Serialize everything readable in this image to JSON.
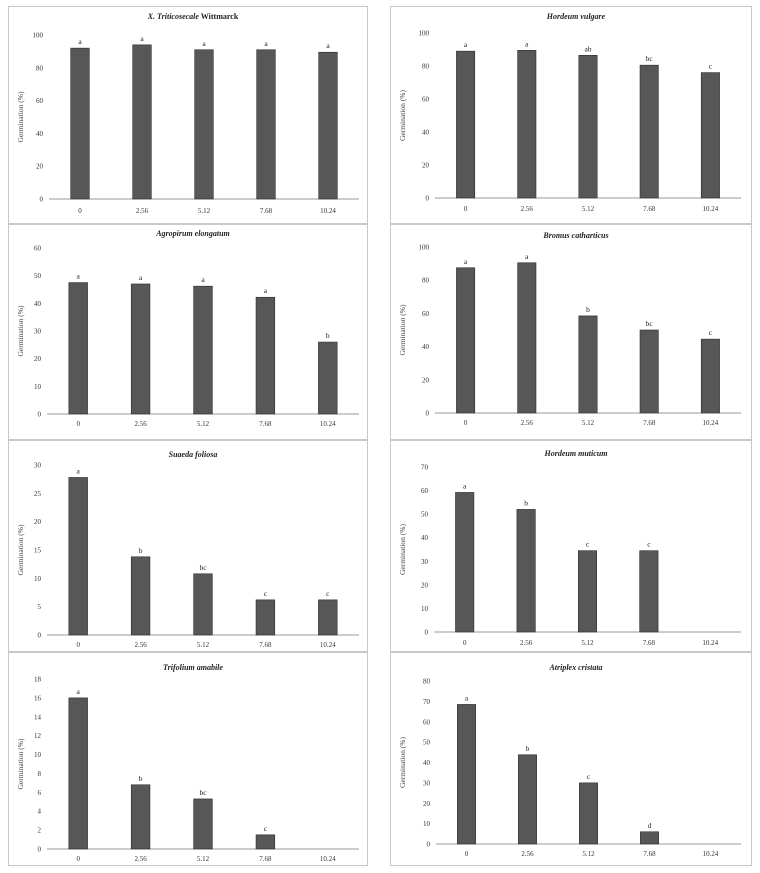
{
  "chart_data": [
    {
      "type": "bar",
      "title": "X. Triticosecale Wittmarck",
      "title_parts": [
        {
          "text": "X. Triticosecale",
          "italic": true
        },
        {
          "text": " Wittmarck",
          "italic": false
        }
      ],
      "ylabel": "Germination (%)",
      "xlabel": "",
      "categories": [
        "0",
        "2.56",
        "5.12",
        "7.68",
        "10.24"
      ],
      "values": [
        92,
        94,
        91,
        91,
        89.5
      ],
      "labels": [
        "a",
        "a",
        "a",
        "a",
        "a"
      ],
      "ylim": [
        0,
        100
      ],
      "yticks": [
        0,
        20,
        40,
        60,
        80,
        100
      ],
      "grid": false
    },
    {
      "type": "bar",
      "title": "Hordeum vulgare",
      "ylabel": "Germination (%)",
      "xlabel": "",
      "categories": [
        "0",
        "2.56",
        "5.12",
        "7.68",
        "10.24"
      ],
      "values": [
        89,
        89.5,
        86.5,
        80.5,
        76
      ],
      "labels": [
        "a",
        "a",
        "ab",
        "bc",
        "c"
      ],
      "ylim": [
        0,
        100
      ],
      "yticks": [
        0,
        20,
        40,
        60,
        80,
        100
      ],
      "grid": false
    },
    {
      "type": "bar",
      "title": "Agropirum elongatum",
      "ylabel": "Germination (%)",
      "xlabel": "",
      "categories": [
        "0",
        "2.56",
        "5.12",
        "7.68",
        "10.24"
      ],
      "values": [
        47.5,
        47,
        46.2,
        42.2,
        26
      ],
      "labels": [
        "a",
        "a",
        "a",
        "a",
        "b"
      ],
      "ylim": [
        0,
        60
      ],
      "yticks": [
        0,
        10,
        20,
        30,
        40,
        50,
        60
      ],
      "grid": false
    },
    {
      "type": "bar",
      "title": "Bromus catharticus",
      "ylabel": "Germination (%)",
      "xlabel": "",
      "categories": [
        "0",
        "2.56",
        "5.12",
        "7.68",
        "10.24"
      ],
      "values": [
        87.5,
        90.5,
        58.5,
        50,
        44.5
      ],
      "labels": [
        "a",
        "a",
        "b",
        "bc",
        "c"
      ],
      "ylim": [
        0,
        100
      ],
      "yticks": [
        0,
        20,
        40,
        60,
        80,
        100
      ],
      "grid": false
    },
    {
      "type": "bar",
      "title": "Suaeda foliosa",
      "ylabel": "Germination (%)",
      "xlabel": "",
      "categories": [
        "0",
        "2.56",
        "5.12",
        "7.68",
        "10.24"
      ],
      "values": [
        27.8,
        13.8,
        10.8,
        6.2,
        6.2
      ],
      "labels": [
        "a",
        "b",
        "bc",
        "c",
        "c"
      ],
      "ylim": [
        0,
        30
      ],
      "yticks": [
        0,
        5,
        10,
        15,
        20,
        25,
        30
      ],
      "grid": false
    },
    {
      "type": "bar",
      "title": "Hordeum muticum",
      "ylabel": "Germination (%)",
      "xlabel": "",
      "categories": [
        "0",
        "2.56",
        "5.12",
        "7.68",
        "10.24"
      ],
      "values": [
        59.2,
        52,
        34.5,
        34.5,
        0
      ],
      "labels": [
        "a",
        "b",
        "c",
        "c",
        ""
      ],
      "ylim": [
        0,
        70
      ],
      "yticks": [
        0,
        10,
        20,
        30,
        40,
        50,
        60,
        70
      ],
      "grid": false
    },
    {
      "type": "bar",
      "title": "Trifolium amabile",
      "ylabel": "Germination (%)",
      "xlabel": "",
      "categories": [
        "0",
        "2.56",
        "5.12",
        "7.68",
        "10.24"
      ],
      "values": [
        16,
        6.8,
        5.3,
        1.5,
        0
      ],
      "labels": [
        "a",
        "b",
        "bc",
        "c",
        ""
      ],
      "ylim": [
        0,
        18
      ],
      "yticks": [
        0,
        2,
        4,
        6,
        8,
        10,
        12,
        14,
        16,
        18
      ],
      "grid": false
    },
    {
      "type": "bar",
      "title": "Atriplex cristata",
      "ylabel": "Germination (%)",
      "xlabel": "",
      "categories": [
        "0",
        "2.56",
        "5.12",
        "7.68",
        "10.24"
      ],
      "values": [
        68.5,
        43.8,
        30,
        6,
        0
      ],
      "labels": [
        "a",
        "b",
        "c",
        "d",
        ""
      ],
      "ylim": [
        0,
        80
      ],
      "yticks": [
        0,
        10,
        20,
        30,
        40,
        50,
        60,
        70,
        80
      ],
      "grid": false
    }
  ]
}
